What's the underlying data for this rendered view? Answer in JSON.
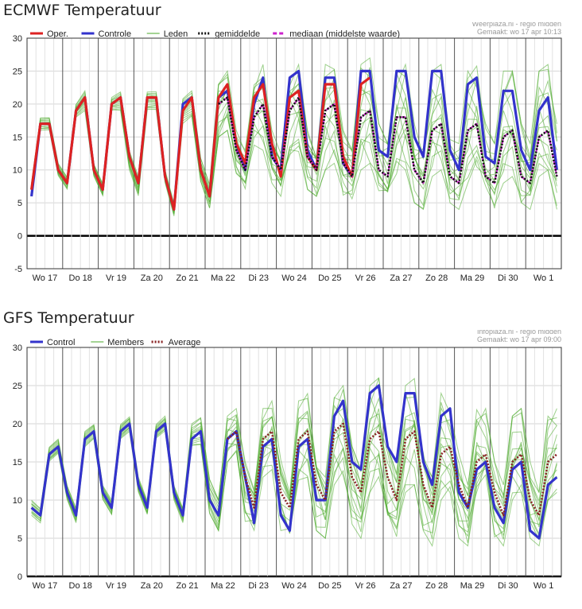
{
  "chart_data": [
    {
      "type": "line",
      "title": "ECMWF Temperatuur",
      "source": "Weerplaza.nl - regio midden",
      "made": "Gemaakt: wo 17 apr 10:13",
      "ylim": [
        -5,
        30
      ],
      "yticks": [
        -5,
        0,
        5,
        10,
        15,
        20,
        25,
        30
      ],
      "grid": true,
      "legend_position": "top",
      "day_labels": [
        "Wo 17",
        "Do 18",
        "Vr 19",
        "Za 20",
        "Zo 21",
        "Ma 22",
        "Di 23",
        "Wo 24",
        "Do 25",
        "Vr 26",
        "Za 27",
        "Zo 28",
        "Ma 29",
        "Di 30",
        "Wo 1"
      ],
      "colors": {
        "oper": "#dd2222",
        "control": "#3333cc",
        "members": "#4aaa2a",
        "mean": "#111111",
        "median": "#cc22cc"
      },
      "legend": [
        {
          "key": "oper",
          "label": "Oper.",
          "style": "solid"
        },
        {
          "key": "control",
          "label": "Controle",
          "style": "solid"
        },
        {
          "key": "members",
          "label": "Leden",
          "style": "thin"
        },
        {
          "key": "mean",
          "label": "gemiddelde",
          "style": "dotted"
        },
        {
          "key": "median",
          "label": "mediaan (middelste waarde)",
          "style": "dashed"
        }
      ],
      "series": [
        {
          "key": "control",
          "values": [
            6,
            17,
            17,
            10,
            8,
            19,
            21,
            10,
            7,
            20,
            21,
            12,
            8,
            21,
            21,
            9,
            4,
            20,
            21,
            10,
            6,
            21,
            22,
            14,
            10,
            20,
            24,
            12,
            10,
            24,
            25,
            13,
            10,
            24,
            24,
            11,
            9,
            25,
            25,
            13,
            12,
            25,
            25,
            15,
            12,
            25,
            25,
            13,
            10,
            23,
            24,
            12,
            11,
            22,
            22,
            13,
            10,
            19,
            21,
            10
          ]
        },
        {
          "key": "oper",
          "values": [
            7,
            17,
            17,
            10,
            8,
            19,
            21,
            10,
            7,
            20,
            21,
            12,
            8,
            21,
            21,
            9,
            4,
            19,
            21,
            10,
            6,
            21,
            23,
            14,
            11,
            21,
            23,
            14,
            9,
            21,
            22,
            12,
            10,
            23,
            23,
            12,
            9,
            23,
            24
          ]
        },
        {
          "key": "mean",
          "values": [
            null,
            null,
            null,
            null,
            null,
            null,
            null,
            null,
            null,
            null,
            null,
            null,
            null,
            null,
            null,
            null,
            null,
            null,
            null,
            null,
            null,
            20,
            21,
            13,
            10,
            18,
            20,
            12,
            10,
            19,
            21,
            12,
            10,
            19,
            20,
            11,
            9,
            18,
            19,
            10,
            9,
            18,
            18,
            10,
            8,
            16,
            17,
            9,
            8,
            16,
            17,
            9,
            8,
            15,
            16,
            9,
            8,
            15,
            16,
            9
          ]
        },
        {
          "key": "median",
          "values": [
            null,
            null,
            null,
            null,
            null,
            null,
            null,
            null,
            null,
            null,
            null,
            null,
            null,
            null,
            null,
            null,
            null,
            null,
            null,
            null,
            null,
            20,
            21,
            13,
            10,
            18,
            20,
            12,
            10,
            19,
            21,
            12,
            10,
            19,
            20,
            11,
            9,
            18,
            19,
            10,
            9,
            18,
            18,
            10,
            8,
            16,
            17,
            9,
            8,
            16,
            17,
            9,
            8,
            15,
            16,
            9,
            8,
            15,
            16,
            9
          ]
        }
      ],
      "members_band": {
        "low": [
          6,
          16,
          16,
          9,
          7,
          18,
          19,
          9,
          6,
          19,
          19,
          10,
          6,
          19,
          19,
          8,
          3,
          17,
          18,
          8,
          4,
          15,
          16,
          9,
          7,
          12,
          13,
          8,
          6,
          11,
          12,
          7,
          6,
          10,
          11,
          6,
          5,
          10,
          11,
          6,
          5,
          9,
          10,
          5,
          4,
          9,
          10,
          5,
          4,
          8,
          9,
          5,
          4,
          8,
          9,
          5,
          4,
          9,
          10,
          4
        ],
        "high": [
          8,
          18,
          18,
          11,
          9,
          20,
          22,
          11,
          8,
          21,
          22,
          13,
          9,
          22,
          22,
          10,
          5,
          21,
          22,
          12,
          8,
          23,
          25,
          16,
          13,
          24,
          26,
          16,
          13,
          25,
          26,
          16,
          13,
          26,
          26,
          16,
          13,
          26,
          27,
          17,
          14,
          26,
          26,
          17,
          14,
          25,
          26,
          17,
          14,
          25,
          26,
          17,
          14,
          25,
          25,
          17,
          14,
          25,
          26,
          17
        ]
      }
    },
    {
      "type": "line",
      "title": "GFS Temperatuur",
      "source": "Infoplaza.nl - regio midden",
      "made": "Gemaakt: wo 17 apr 09:00",
      "ylim": [
        0,
        30
      ],
      "yticks": [
        0,
        5,
        10,
        15,
        20,
        25,
        30
      ],
      "grid": true,
      "legend_position": "top",
      "day_labels": [
        "Wo 17",
        "Do 18",
        "Vr 19",
        "Za 20",
        "Zo 21",
        "Ma 22",
        "Di 23",
        "Wo 24",
        "Do 25",
        "Vr 26",
        "Za 27",
        "Zo 28",
        "Ma 29",
        "Di 30",
        "Wo 1"
      ],
      "colors": {
        "control": "#3333cc",
        "members": "#4aaa2a",
        "average": "#882222"
      },
      "legend": [
        {
          "key": "control",
          "label": "Control",
          "style": "solid"
        },
        {
          "key": "members",
          "label": "Members",
          "style": "thin"
        },
        {
          "key": "average",
          "label": "Average",
          "style": "dotted"
        }
      ],
      "series": [
        {
          "key": "control",
          "values": [
            9,
            8,
            16,
            17,
            11,
            8,
            18,
            19,
            11,
            9,
            19,
            20,
            12,
            9,
            19,
            20,
            11,
            8,
            18,
            19,
            10,
            8,
            18,
            19,
            13,
            7,
            17,
            18,
            8,
            6,
            17,
            18,
            10,
            10,
            21,
            23,
            15,
            14,
            24,
            25,
            17,
            15,
            24,
            24,
            15,
            12,
            21,
            22,
            11,
            9,
            14,
            15,
            9,
            7,
            14,
            15,
            6,
            5,
            12,
            13
          ]
        },
        {
          "key": "average",
          "values": [
            null,
            null,
            null,
            null,
            null,
            null,
            null,
            null,
            null,
            null,
            null,
            null,
            null,
            null,
            null,
            null,
            null,
            null,
            null,
            null,
            null,
            null,
            18,
            19,
            13,
            9,
            18,
            19,
            11,
            9,
            18,
            19,
            12,
            10,
            19,
            20,
            13,
            11,
            18,
            19,
            13,
            10,
            18,
            19,
            12,
            9,
            16,
            17,
            12,
            9,
            15,
            16,
            11,
            8,
            15,
            16,
            10,
            8,
            15,
            16
          ]
        }
      ],
      "members_band": {
        "low": [
          8,
          7,
          15,
          16,
          10,
          7,
          17,
          18,
          10,
          8,
          18,
          19,
          11,
          8,
          18,
          19,
          10,
          7,
          17,
          17,
          8,
          6,
          15,
          16,
          7,
          5,
          13,
          14,
          6,
          5,
          12,
          13,
          6,
          5,
          12,
          13,
          6,
          5,
          11,
          12,
          6,
          5,
          11,
          12,
          6,
          4,
          10,
          11,
          5,
          4,
          10,
          11,
          5,
          4,
          10,
          11,
          5,
          4,
          10,
          11
        ],
        "high": [
          10,
          9,
          17,
          18,
          12,
          9,
          19,
          20,
          12,
          10,
          20,
          21,
          13,
          10,
          20,
          21,
          12,
          9,
          20,
          21,
          13,
          10,
          21,
          22,
          15,
          12,
          22,
          23,
          16,
          12,
          23,
          24,
          16,
          13,
          24,
          25,
          17,
          14,
          25,
          26,
          17,
          14,
          25,
          26,
          17,
          13,
          24,
          24,
          16,
          12,
          22,
          22,
          15,
          12,
          21,
          22,
          15,
          11,
          21,
          22
        ]
      }
    }
  ]
}
